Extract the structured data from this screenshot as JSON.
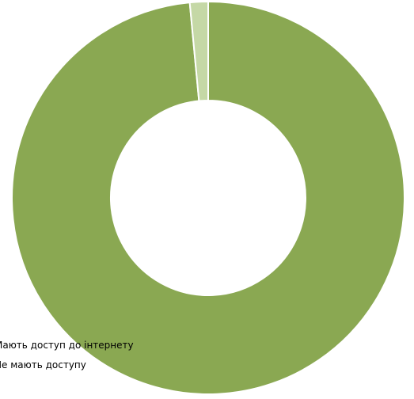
{
  "chart_data": {
    "type": "donut",
    "title": "",
    "slices": [
      {
        "label": "Мають доступ до інтернету",
        "value": 98.5,
        "color": "#8aa852"
      },
      {
        "label": "Не мають доступу",
        "value": 1.5,
        "color": "#c5d8a6"
      }
    ],
    "legend_position": "bottom-left",
    "start_angle_deg": 0,
    "direction": "clockwise"
  }
}
